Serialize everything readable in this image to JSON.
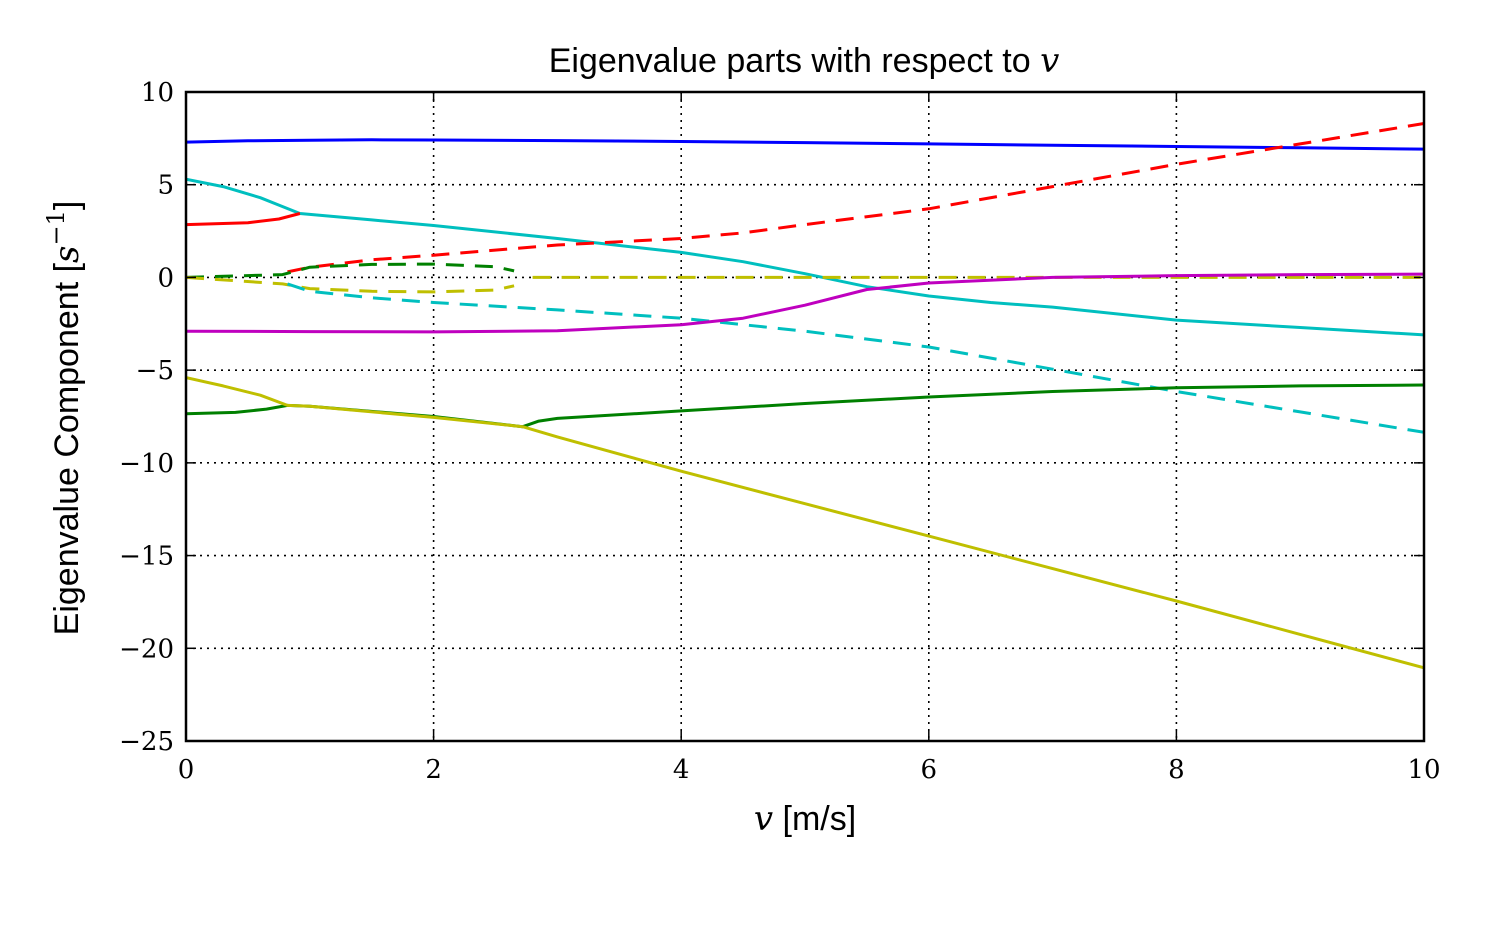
{
  "chart_data": {
    "type": "line",
    "title": {
      "text": "Eigenvalue parts with respect to ",
      "var": "v"
    },
    "xlabel": {
      "var": "v",
      "text": " [m/s]"
    },
    "ylabel": {
      "text": "Eigenvalue Component [",
      "var": "s",
      "sup": "−1",
      "close": "]"
    },
    "xlim": [
      0,
      10
    ],
    "ylim": [
      -25,
      10
    ],
    "xticks": [
      0,
      2,
      4,
      6,
      8,
      10
    ],
    "xtick_labels": [
      "0",
      "2",
      "4",
      "6",
      "8",
      "10"
    ],
    "yticks": [
      10,
      5,
      0,
      -5,
      -10,
      -15,
      -20,
      -25
    ],
    "ytick_labels": [
      "10",
      "5",
      "0",
      "−5",
      "−10",
      "−15",
      "−20",
      "−25"
    ],
    "grid": true,
    "series": [
      {
        "color": "#0000ff",
        "style": "solid",
        "x": [
          0,
          0.5,
          1,
          1.5,
          2,
          3,
          4,
          5,
          6,
          7,
          8,
          9,
          10
        ],
        "y": [
          7.3,
          7.37,
          7.4,
          7.42,
          7.41,
          7.38,
          7.33,
          7.27,
          7.2,
          7.13,
          7.06,
          6.99,
          6.92
        ]
      },
      {
        "color": "#00bfbf",
        "style": "solid",
        "x": [
          0,
          0.3,
          0.6,
          0.75,
          0.92,
          1.5,
          2,
          3,
          4,
          4.5,
          5,
          5.5,
          6,
          6.5,
          7,
          8,
          9,
          10
        ],
        "y": [
          5.3,
          4.9,
          4.3,
          3.9,
          3.45,
          3.1,
          2.8,
          2.1,
          1.35,
          0.85,
          0.2,
          -0.5,
          -1.0,
          -1.35,
          -1.6,
          -2.3,
          -2.7,
          -3.1
        ]
      },
      {
        "color": "#ff0000",
        "style": "solid",
        "x": [
          0,
          0.5,
          0.75,
          0.92
        ],
        "y": [
          2.85,
          2.95,
          3.15,
          3.45
        ]
      },
      {
        "color": "#ff0000",
        "style": "dashed",
        "x": [
          0.82,
          1,
          1.5,
          2,
          3,
          4,
          4.5,
          5,
          6,
          7,
          8,
          9,
          10
        ],
        "y": [
          0.3,
          0.55,
          0.95,
          1.2,
          1.75,
          2.1,
          2.4,
          2.85,
          3.7,
          4.9,
          6.1,
          7.2,
          8.3
        ]
      },
      {
        "color": "#008000",
        "style": "dashed",
        "x": [
          0,
          0.78,
          1,
          1.5,
          2,
          2.5,
          2.65
        ],
        "y": [
          0,
          0.15,
          0.55,
          0.7,
          0.72,
          0.58,
          0.35
        ]
      },
      {
        "color": "#bfbf00",
        "style": "dashed",
        "x": [
          0,
          0.78,
          1,
          1.5,
          2,
          2.5,
          2.65
        ],
        "y": [
          0,
          -0.35,
          -0.6,
          -0.75,
          -0.78,
          -0.68,
          -0.45
        ]
      },
      {
        "color": "#bfbf00",
        "style": "dashed",
        "x": [
          2.8,
          4,
          6,
          8,
          10
        ],
        "y": [
          0,
          0,
          0,
          0,
          0
        ]
      },
      {
        "color": "#00bfbf",
        "style": "dashed",
        "x": [
          0.82,
          1,
          1.5,
          2,
          3,
          4,
          5,
          6,
          7,
          8,
          9,
          10
        ],
        "y": [
          -0.35,
          -0.75,
          -1.1,
          -1.35,
          -1.75,
          -2.2,
          -2.9,
          -3.75,
          -4.95,
          -6.15,
          -7.25,
          -8.35
        ]
      },
      {
        "color": "#bf00bf",
        "style": "solid",
        "x": [
          0,
          1,
          2,
          3,
          4,
          4.5,
          5,
          5.5,
          6,
          7,
          8,
          9,
          10
        ],
        "y": [
          -2.9,
          -2.92,
          -2.94,
          -2.88,
          -2.55,
          -2.2,
          -1.5,
          -0.65,
          -0.3,
          0.0,
          0.1,
          0.15,
          0.18
        ]
      },
      {
        "color": "#008000",
        "style": "solid",
        "x": [
          0,
          0.4,
          0.65,
          0.82,
          1,
          2,
          2.72,
          2.85,
          3,
          4,
          5,
          6,
          7,
          8,
          9,
          10
        ],
        "y": [
          -7.35,
          -7.28,
          -7.1,
          -6.9,
          -6.95,
          -7.5,
          -8.05,
          -7.75,
          -7.6,
          -7.2,
          -6.8,
          -6.45,
          -6.15,
          -5.95,
          -5.85,
          -5.8
        ]
      },
      {
        "color": "#bfbf00",
        "style": "solid",
        "x": [
          0,
          0.3,
          0.6,
          0.82,
          1,
          2,
          2.72,
          3,
          4,
          5,
          6,
          7,
          8,
          9,
          10
        ],
        "y": [
          -5.4,
          -5.85,
          -6.35,
          -6.9,
          -6.95,
          -7.55,
          -8.05,
          -8.6,
          -10.45,
          -12.2,
          -13.95,
          -15.7,
          -17.45,
          -19.25,
          -21.05
        ]
      }
    ]
  }
}
